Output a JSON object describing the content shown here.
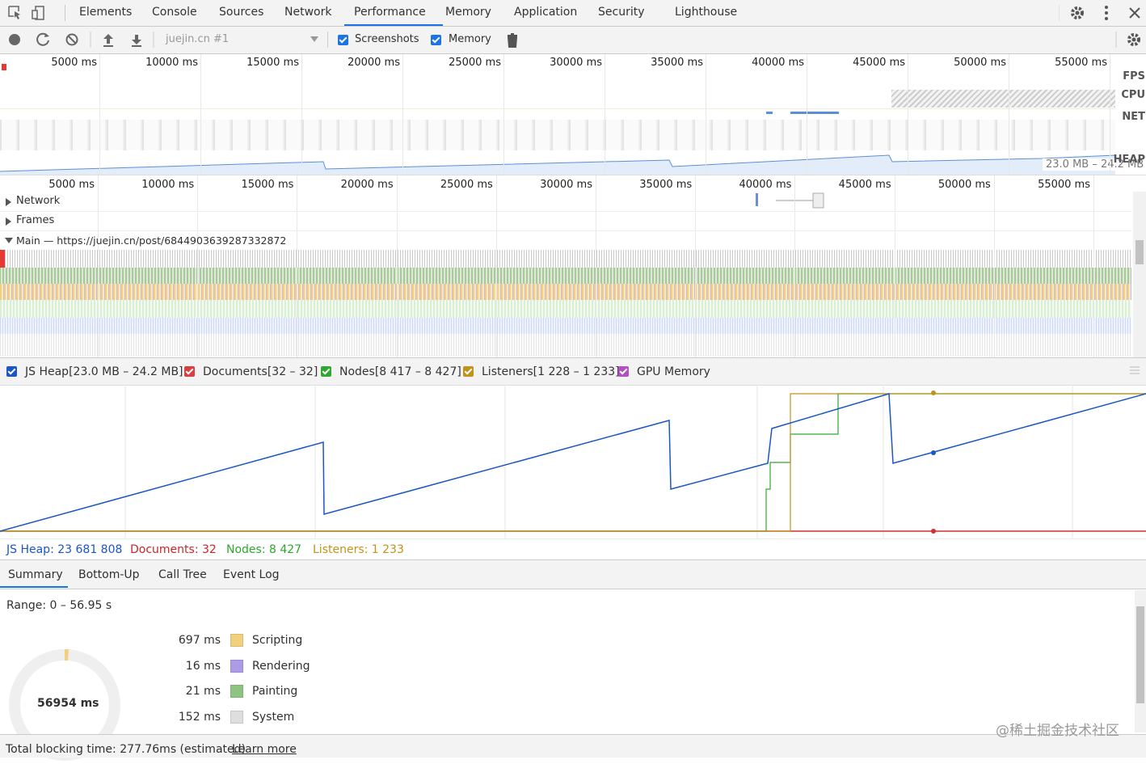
{
  "tabs": [
    "Elements",
    "Console",
    "Sources",
    "Network",
    "Performance",
    "Memory",
    "Application",
    "Security",
    "Lighthouse"
  ],
  "toolbar": {
    "target": "juejin.cn #1",
    "screenshots": "Screenshots",
    "memory": "Memory"
  },
  "overview": {
    "ticks": [
      "5000 ms",
      "10000 ms",
      "15000 ms",
      "20000 ms",
      "25000 ms",
      "30000 ms",
      "35000 ms",
      "40000 ms",
      "45000 ms",
      "50000 ms",
      "55000 ms"
    ],
    "tracks": [
      "FPS",
      "CPU",
      "NET",
      "HEAP"
    ],
    "heap_range": "23.0 MB – 24.2 MB"
  },
  "timeline": {
    "ticks": [
      "5000 ms",
      "10000 ms",
      "15000 ms",
      "20000 ms",
      "25000 ms",
      "30000 ms",
      "35000 ms",
      "40000 ms",
      "45000 ms",
      "50000 ms",
      "55000 ms"
    ],
    "tracks": [
      "Network",
      "Frames"
    ],
    "main": "Main — https://juejin.cn/post/6844903639287332872"
  },
  "memory": {
    "legend": [
      {
        "label": "JS Heap[23.0 MB – 24.2 MB]",
        "color": "#1a56c4"
      },
      {
        "label": "Documents[32 – 32]",
        "color": "#d83f3f"
      },
      {
        "label": "Nodes[8 417 – 8 427]",
        "color": "#2fa830"
      },
      {
        "label": "Listeners[1 228 – 1 233]",
        "color": "#c29318"
      },
      {
        "label": "GPU Memory",
        "color": "#b54ec4"
      }
    ],
    "counters": [
      {
        "label": "JS Heap: 23 681 808",
        "color": "#1a56c4"
      },
      {
        "label": "Documents: 32",
        "color": "#c62828"
      },
      {
        "label": "Nodes: 8 427",
        "color": "#2fa830"
      },
      {
        "label": "Listeners: 1 233",
        "color": "#c29318"
      }
    ]
  },
  "summary": {
    "tabs": [
      "Summary",
      "Bottom-Up",
      "Call Tree",
      "Event Log"
    ],
    "range": "Range: 0 – 56.95 s",
    "rows": [
      {
        "time": "697 ms",
        "label": "Scripting",
        "color": "#f3d07e"
      },
      {
        "time": "16 ms",
        "label": "Rendering",
        "color": "#ae9be8"
      },
      {
        "time": "21 ms",
        "label": "Painting",
        "color": "#8cc480"
      },
      {
        "time": "152 ms",
        "label": "System",
        "color": "#dedede"
      }
    ],
    "total": "56954 ms",
    "blocking": "Total blocking time: 277.76ms (estimated)",
    "learn_more": "Learn more"
  },
  "watermark": "@稀土掘金技术社区"
}
